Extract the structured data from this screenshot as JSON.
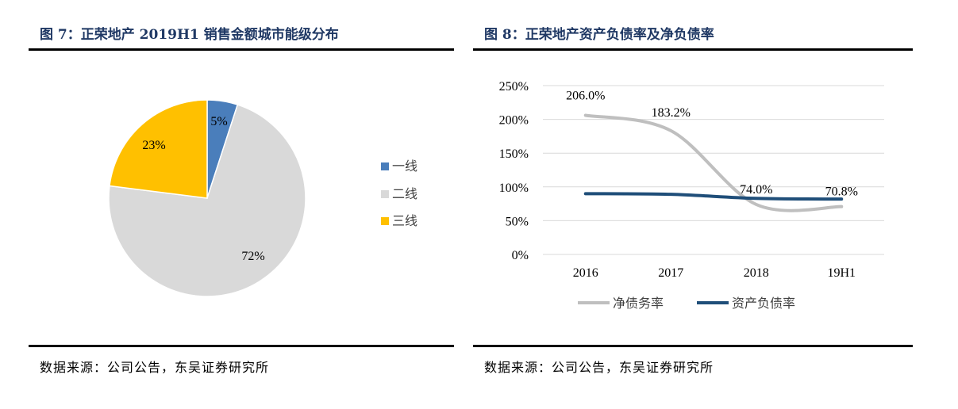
{
  "colors": {
    "title": "#1f3864",
    "blue": "#4a7ebb",
    "gray": "#d9d9d9",
    "yellow": "#ffc000",
    "line_gray": "#bfbfbf",
    "line_navy": "#1f4e79"
  },
  "left": {
    "title": "图 7：正荣地产 2019H1 销售金额城市能级分布",
    "source": "数据来源：公司公告，东吴证券研究所",
    "legend": [
      "一线",
      "二线",
      "三线"
    ],
    "chart_data": {
      "type": "pie",
      "title": "",
      "categories": [
        "一线",
        "二线",
        "三线"
      ],
      "values": [
        5,
        72,
        23
      ],
      "labels": [
        "5%",
        "72%",
        "23%"
      ],
      "colors": [
        "#4a7ebb",
        "#d9d9d9",
        "#ffc000"
      ],
      "legend_position": "right"
    }
  },
  "right": {
    "title": "图 8：正荣地产资产负债率及净负债率",
    "source": "数据来源：公司公告，东吴证券研究所",
    "chart_data": {
      "type": "line",
      "title": "",
      "categories": [
        "2016",
        "2017",
        "2018",
        "19H1"
      ],
      "yticks": [
        "0%",
        "50%",
        "100%",
        "150%",
        "200%",
        "250%"
      ],
      "ylim": [
        0,
        250
      ],
      "grid": true,
      "legend_position": "bottom",
      "series": [
        {
          "name": "净债务率",
          "values": [
            206.0,
            183.2,
            74.0,
            70.8
          ],
          "labels": [
            "206.0%",
            "183.2%",
            "74.0%",
            "70.8%"
          ],
          "color": "#bfbfbf"
        },
        {
          "name": "资产负债率",
          "values": [
            90,
            89,
            83,
            82
          ],
          "color": "#1f4e79"
        }
      ]
    }
  }
}
